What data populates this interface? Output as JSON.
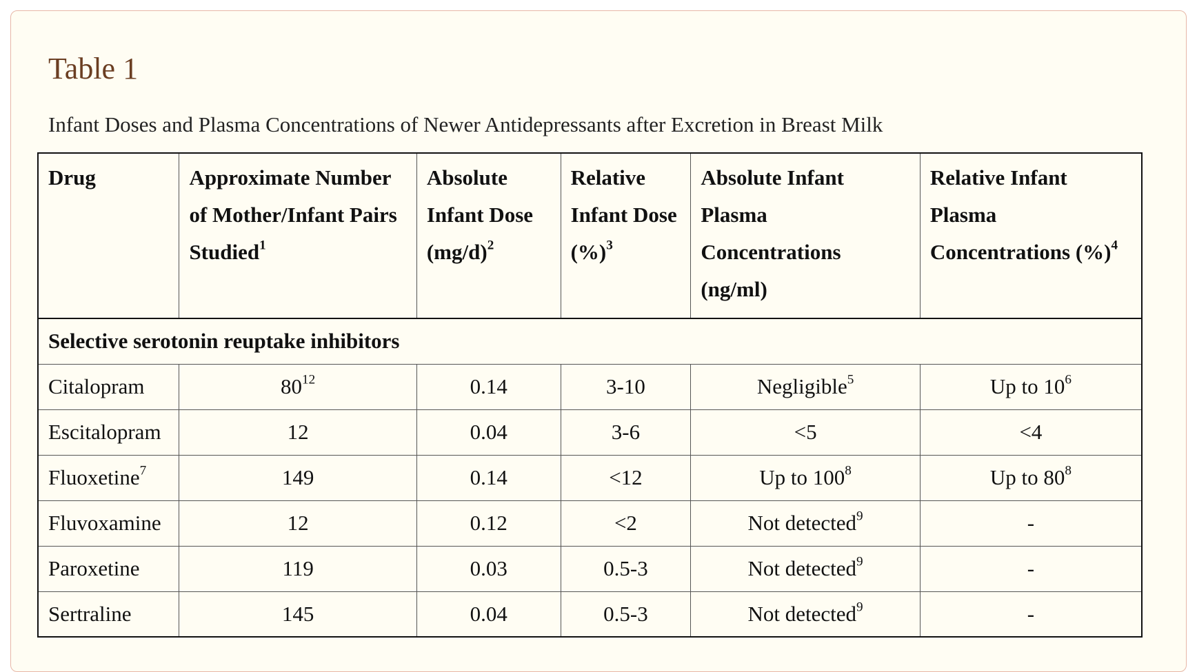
{
  "table": {
    "title": "Table 1",
    "caption": "Infant Doses and Plasma Concentrations of Newer Antidepressants after Excretion in Breast Milk",
    "headers": [
      {
        "text": "Drug",
        "sup": ""
      },
      {
        "text": "Approximate Number of Mother/Infant Pairs Studied",
        "sup": "1"
      },
      {
        "text": "Absolute Infant Dose (mg/d)",
        "sup": "2"
      },
      {
        "text": "Relative Infant Dose (%)",
        "sup": "3"
      },
      {
        "text": "Absolute Infant Plasma Concentrations (ng/ml)",
        "sup": ""
      },
      {
        "text": "Relative Infant Plasma Concentrations (%)",
        "sup": "4"
      }
    ],
    "group_label": "Selective serotonin reuptake inhibitors",
    "rows": [
      {
        "drug": "Citalopram",
        "drug_sup": "",
        "n": "80",
        "n_sup": "12",
        "abs_dose": "0.14",
        "rel_dose": "3-10",
        "abs_plasma": "Negligible",
        "abs_plasma_sup": "5",
        "rel_plasma": "Up to 10",
        "rel_plasma_sup": "6"
      },
      {
        "drug": "Escitalopram",
        "drug_sup": "",
        "n": "12",
        "n_sup": "",
        "abs_dose": "0.04",
        "rel_dose": "3-6",
        "abs_plasma": "<5",
        "abs_plasma_sup": "",
        "rel_plasma": "<4",
        "rel_plasma_sup": ""
      },
      {
        "drug": "Fluoxetine",
        "drug_sup": "7",
        "n": "149",
        "n_sup": "",
        "abs_dose": "0.14",
        "rel_dose": "<12",
        "abs_plasma": "Up to 100",
        "abs_plasma_sup": "8",
        "rel_plasma": "Up to 80",
        "rel_plasma_sup": "8"
      },
      {
        "drug": "Fluvoxamine",
        "drug_sup": "",
        "n": "12",
        "n_sup": "",
        "abs_dose": "0.12",
        "rel_dose": "<2",
        "abs_plasma": "Not detected",
        "abs_plasma_sup": "9",
        "rel_plasma": "-",
        "rel_plasma_sup": ""
      },
      {
        "drug": "Paroxetine",
        "drug_sup": "",
        "n": "119",
        "n_sup": "",
        "abs_dose": "0.03",
        "rel_dose": "0.5-3",
        "abs_plasma": "Not detected",
        "abs_plasma_sup": "9",
        "rel_plasma": "-",
        "rel_plasma_sup": ""
      },
      {
        "drug": "Sertraline",
        "drug_sup": "",
        "n": "145",
        "n_sup": "",
        "abs_dose": "0.04",
        "rel_dose": "0.5-3",
        "abs_plasma": "Not detected",
        "abs_plasma_sup": "9",
        "rel_plasma": "-",
        "rel_plasma_sup": ""
      }
    ]
  }
}
